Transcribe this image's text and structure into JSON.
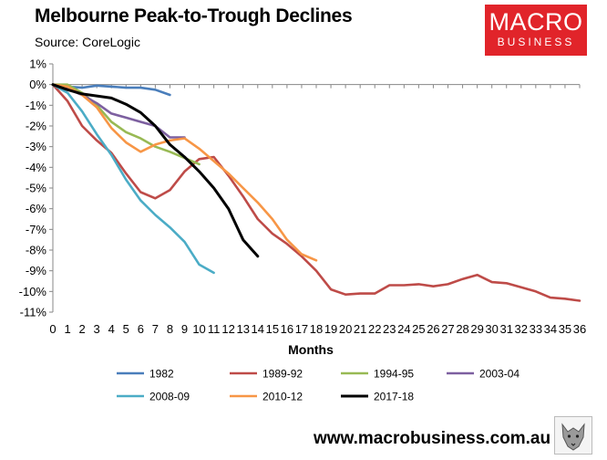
{
  "header": {
    "title": "Melbourne Peak-to-Trough Declines",
    "subtitle": "Source: CoreLogic"
  },
  "logo": {
    "line1": "MACRO",
    "line2": "BUSINESS",
    "color": "#e1242a"
  },
  "footer": {
    "url": "www.macrobusiness.com.au"
  },
  "chart_data": {
    "type": "line",
    "title": "Melbourne Peak-to-Trough Declines",
    "subtitle": "Source: CoreLogic",
    "xlabel": "Months",
    "ylabel": "",
    "xlim": [
      0,
      36
    ],
    "ylim": [
      -11,
      1
    ],
    "x_ticks": [
      0,
      1,
      2,
      3,
      4,
      5,
      6,
      7,
      8,
      9,
      10,
      11,
      12,
      13,
      14,
      15,
      16,
      17,
      18,
      19,
      20,
      21,
      22,
      23,
      24,
      25,
      26,
      27,
      28,
      29,
      30,
      31,
      32,
      33,
      34,
      35,
      36
    ],
    "y_ticks": [
      1,
      0,
      -1,
      -2,
      -3,
      -4,
      -5,
      -6,
      -7,
      -8,
      -9,
      -10,
      -11
    ],
    "y_tick_labels": [
      "1%",
      "0%",
      "-1%",
      "-2%",
      "-3%",
      "-4%",
      "-5%",
      "-6%",
      "-7%",
      "-8%",
      "-9%",
      "-10%",
      "-11%"
    ],
    "grid": false,
    "legend_position": "bottom",
    "series": [
      {
        "name": "1982",
        "color": "#4a7ebb",
        "x": [
          0,
          1,
          2,
          3,
          4,
          5,
          6,
          7,
          8
        ],
        "values": [
          0,
          -0.1,
          -0.15,
          -0.05,
          -0.1,
          -0.15,
          -0.15,
          -0.25,
          -0.5
        ]
      },
      {
        "name": "1989-92",
        "color": "#be4b48",
        "x": [
          0,
          1,
          2,
          3,
          4,
          5,
          6,
          7,
          8,
          9,
          10,
          11,
          12,
          13,
          14,
          15,
          16,
          17,
          18,
          19,
          20,
          21,
          22,
          23,
          24,
          25,
          26,
          27,
          28,
          29,
          30,
          31,
          32,
          33,
          34,
          35,
          36
        ],
        "values": [
          0,
          -0.8,
          -2.0,
          -2.7,
          -3.3,
          -4.3,
          -5.2,
          -5.5,
          -5.1,
          -4.2,
          -3.6,
          -3.5,
          -4.4,
          -5.4,
          -6.5,
          -7.2,
          -7.7,
          -8.3,
          -9.0,
          -9.9,
          -10.15,
          -10.1,
          -10.1,
          -9.7,
          -9.7,
          -9.65,
          -9.75,
          -9.65,
          -9.4,
          -9.2,
          -9.55,
          -9.6,
          -9.8,
          -10.0,
          -10.3,
          -10.35,
          -10.45
        ]
      },
      {
        "name": "1994-95",
        "color": "#98b954",
        "x": [
          0,
          1,
          2,
          3,
          4,
          5,
          6,
          7,
          8,
          9,
          10
        ],
        "values": [
          0,
          0,
          -0.4,
          -1.0,
          -1.8,
          -2.3,
          -2.6,
          -3.0,
          -3.25,
          -3.55,
          -3.85
        ]
      },
      {
        "name": "2003-04",
        "color": "#7d60a0",
        "x": [
          0,
          1,
          2,
          3,
          4,
          5,
          6,
          7,
          8,
          9
        ],
        "values": [
          0,
          -0.2,
          -0.5,
          -0.9,
          -1.4,
          -1.6,
          -1.8,
          -2.0,
          -2.55,
          -2.55
        ]
      },
      {
        "name": "2008-09",
        "color": "#4bacc6",
        "x": [
          0,
          1,
          2,
          3,
          4,
          5,
          6,
          7,
          8,
          9,
          10,
          11
        ],
        "values": [
          0,
          -0.4,
          -1.3,
          -2.4,
          -3.4,
          -4.6,
          -5.6,
          -6.3,
          -6.9,
          -7.6,
          -8.7,
          -9.1
        ]
      },
      {
        "name": "2010-12",
        "color": "#f79646",
        "x": [
          0,
          1,
          2,
          3,
          4,
          5,
          6,
          7,
          8,
          9,
          10,
          11,
          12,
          13,
          14,
          15,
          16,
          17,
          18
        ],
        "values": [
          0,
          -0.1,
          -0.5,
          -1.1,
          -2.1,
          -2.8,
          -3.25,
          -2.9,
          -2.7,
          -2.6,
          -3.1,
          -3.7,
          -4.3,
          -5.0,
          -5.7,
          -6.5,
          -7.5,
          -8.2,
          -8.5
        ]
      },
      {
        "name": "2017-18",
        "color": "#000000",
        "x": [
          0,
          1,
          2,
          3,
          4,
          5,
          6,
          7,
          8,
          9,
          10,
          11,
          12,
          13,
          14
        ],
        "values": [
          0,
          -0.25,
          -0.45,
          -0.55,
          -0.65,
          -0.95,
          -1.35,
          -2.0,
          -2.9,
          -3.5,
          -4.2,
          -5.0,
          -6.0,
          -7.5,
          -8.3
        ]
      }
    ]
  }
}
